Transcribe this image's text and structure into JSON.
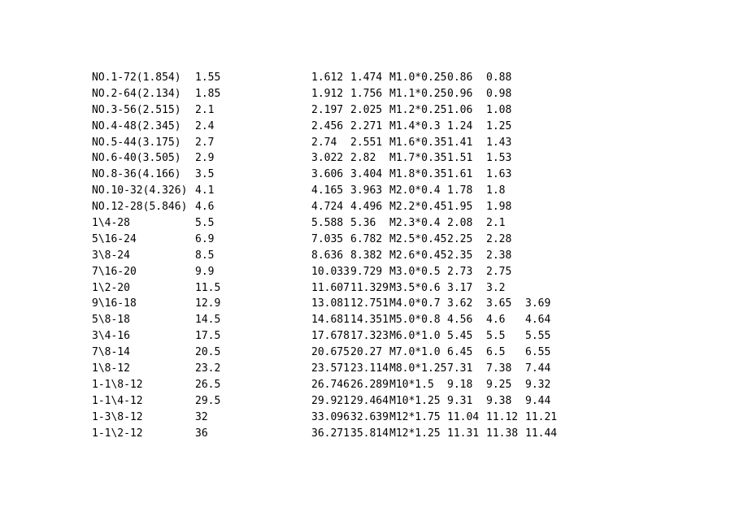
{
  "table": {
    "rows": [
      {
        "a": "NO.1-72(1.854)",
        "b": "1.55",
        "c": "1.612",
        "d": "1.474",
        "e": "M1.0*0.25",
        "f": "0.86",
        "g": "0.88",
        "h": ""
      },
      {
        "a": "NO.2-64(2.134)",
        "b": "1.85",
        "c": "1.912",
        "d": "1.756",
        "e": "M1.1*0.25",
        "f": "0.96",
        "g": "0.98",
        "h": ""
      },
      {
        "a": "NO.3-56(2.515)",
        "b": "2.1",
        "c": "2.197",
        "d": "2.025",
        "e": "M1.2*0.25",
        "f": "1.06",
        "g": "1.08",
        "h": ""
      },
      {
        "a": "NO.4-48(2.345)",
        "b": "2.4",
        "c": "2.456",
        "d": "2.271",
        "e": "M1.4*0.3",
        "f": "1.24",
        "g": "1.25",
        "h": ""
      },
      {
        "a": "NO.5-44(3.175)",
        "b": "2.7",
        "c": "2.74",
        "d": "2.551",
        "e": "M1.6*0.35",
        "f": "1.41",
        "g": "1.43",
        "h": ""
      },
      {
        "a": "NO.6-40(3.505)",
        "b": "2.9",
        "c": "3.022",
        "d": "2.82",
        "e": "M1.7*0.35",
        "f": "1.51",
        "g": "1.53",
        "h": ""
      },
      {
        "a": "NO.8-36(4.166)",
        "b": "3.5",
        "c": "3.606",
        "d": "3.404",
        "e": "M1.8*0.35",
        "f": "1.61",
        "g": "1.63",
        "h": ""
      },
      {
        "a": "NO.10-32(4.326)",
        "b": "4.1",
        "c": "4.165",
        "d": "3.963",
        "e": "M2.0*0.4",
        "f": "1.78",
        "g": "1.8",
        "h": ""
      },
      {
        "a": "NO.12-28(5.846)",
        "b": "4.6",
        "c": "4.724",
        "d": "4.496",
        "e": "M2.2*0.45",
        "f": "1.95",
        "g": "1.98",
        "h": ""
      },
      {
        "a": "1\\4-28",
        "b": "5.5",
        "c": "5.588",
        "d": "5.36",
        "e": "M2.3*0.4",
        "f": "2.08",
        "g": "2.1",
        "h": ""
      },
      {
        "a": "5\\16-24",
        "b": "6.9",
        "c": "7.035",
        "d": "6.782",
        "e": "M2.5*0.45",
        "f": "2.25",
        "g": "2.28",
        "h": ""
      },
      {
        "a": "3\\8-24",
        "b": "8.5",
        "c": "8.636",
        "d": "8.382",
        "e": "M2.6*0.45",
        "f": "2.35",
        "g": "2.38",
        "h": ""
      },
      {
        "a": "7\\16-20",
        "b": "9.9",
        "c": "10.033",
        "d": "9.729",
        "e": "M3.0*0.5",
        "f": "2.73",
        "g": "2.75",
        "h": ""
      },
      {
        "a": "1\\2-20",
        "b": "11.5",
        "c": "11.607",
        "d": "11.329",
        "e": "M3.5*0.6",
        "f": "3.17",
        "g": "3.2",
        "h": ""
      },
      {
        "a": "9\\16-18",
        "b": "12.9",
        "c": "13.081",
        "d": "12.751",
        "e": "M4.0*0.7",
        "f": "3.62",
        "g": "3.65",
        "h": "3.69"
      },
      {
        "a": "5\\8-18",
        "b": "14.5",
        "c": "14.681",
        "d": "14.351",
        "e": "M5.0*0.8",
        "f": "4.56",
        "g": "4.6",
        "h": "4.64"
      },
      {
        "a": "3\\4-16",
        "b": "17.5",
        "c": "17.678",
        "d": "17.323",
        "e": "M6.0*1.0",
        "f": "5.45",
        "g": "5.5",
        "h": "5.55"
      },
      {
        "a": "7\\8-14",
        "b": "20.5",
        "c": "20.675",
        "d": "20.27",
        "e": "M7.0*1.0",
        "f": "6.45",
        "g": "6.5",
        "h": "6.55"
      },
      {
        "a": "1\\8-12",
        "b": "23.2",
        "c": "23.571",
        "d": "23.114",
        "e": "M8.0*1.25",
        "f": "7.31",
        "g": "7.38",
        "h": "7.44"
      },
      {
        "a": "1-1\\8-12",
        "b": "26.5",
        "c": "26.746",
        "d": "26.289",
        "e": "M10*1.5",
        "f": "9.18",
        "g": "9.25",
        "h": "9.32"
      },
      {
        "a": "1-1\\4-12",
        "b": "29.5",
        "c": "29.921",
        "d": "29.464",
        "e": "M10*1.25",
        "f": "9.31",
        "g": "9.38",
        "h": "9.44"
      },
      {
        "a": "1-3\\8-12",
        "b": "32",
        "c": "33.096",
        "d": "32.639",
        "e": "M12*1.75",
        "f": "11.04",
        "g": "11.12",
        "h": "11.21"
      },
      {
        "a": "1-1\\2-12",
        "b": "36",
        "c": "36.271",
        "d": "35.814",
        "e": "M12*1.25",
        "f": "11.31",
        "g": "11.38",
        "h": "11.44"
      }
    ]
  }
}
